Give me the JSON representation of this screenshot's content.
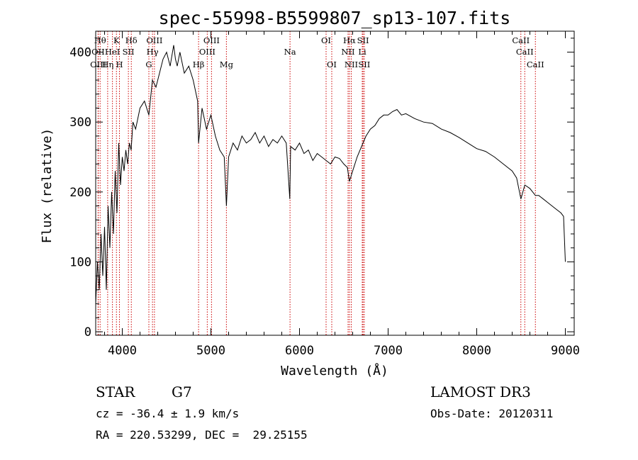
{
  "chart_data": {
    "type": "line",
    "title": "spec-55998-B5599807_sp13-107.fits",
    "xlabel": "Wavelength (Å)",
    "ylabel": "Flux (relative)",
    "xlim": [
      3700,
      9100
    ],
    "ylim": [
      -5,
      430
    ],
    "xticks": [
      4000,
      5000,
      6000,
      7000,
      8000,
      9000
    ],
    "yticks": [
      0,
      100,
      200,
      300,
      400
    ],
    "line_color": "#000000",
    "marker_color": "#cc0000",
    "series": [
      {
        "name": "flux",
        "x": [
          3700,
          3720,
          3740,
          3760,
          3780,
          3800,
          3820,
          3840,
          3860,
          3880,
          3900,
          3920,
          3940,
          3960,
          3980,
          4000,
          4020,
          4040,
          4060,
          4080,
          4100,
          4120,
          4150,
          4200,
          4250,
          4300,
          4340,
          4380,
          4420,
          4460,
          4500,
          4540,
          4580,
          4600,
          4620,
          4650,
          4700,
          4750,
          4800,
          4850,
          4861,
          4900,
          4950,
          5000,
          5050,
          5100,
          5150,
          5175,
          5200,
          5250,
          5300,
          5350,
          5400,
          5450,
          5500,
          5550,
          5600,
          5650,
          5700,
          5750,
          5800,
          5850,
          5890,
          5900,
          5950,
          6000,
          6050,
          6100,
          6150,
          6200,
          6250,
          6300,
          6350,
          6400,
          6450,
          6500,
          6540,
          6563,
          6600,
          6650,
          6700,
          6750,
          6800,
          6850,
          6900,
          6950,
          7000,
          7050,
          7100,
          7150,
          7200,
          7300,
          7400,
          7500,
          7600,
          7700,
          7800,
          7900,
          8000,
          8100,
          8200,
          8300,
          8400,
          8450,
          8498,
          8542,
          8600,
          8662,
          8700,
          8750,
          8800,
          8850,
          8900,
          8950,
          8980,
          9000
        ],
        "y": [
          40,
          100,
          60,
          140,
          80,
          150,
          60,
          180,
          120,
          200,
          140,
          230,
          170,
          270,
          210,
          250,
          230,
          260,
          240,
          270,
          260,
          300,
          290,
          320,
          330,
          310,
          360,
          350,
          370,
          390,
          400,
          380,
          410,
          390,
          380,
          400,
          370,
          380,
          360,
          330,
          270,
          320,
          290,
          310,
          280,
          260,
          250,
          180,
          250,
          270,
          260,
          280,
          270,
          275,
          285,
          270,
          280,
          265,
          275,
          270,
          280,
          270,
          190,
          265,
          260,
          270,
          255,
          260,
          245,
          255,
          250,
          245,
          240,
          250,
          248,
          240,
          235,
          215,
          230,
          250,
          265,
          280,
          290,
          295,
          305,
          310,
          310,
          315,
          318,
          310,
          312,
          305,
          300,
          298,
          290,
          285,
          278,
          270,
          262,
          258,
          250,
          240,
          230,
          220,
          190,
          210,
          205,
          195,
          195,
          190,
          185,
          180,
          175,
          170,
          165,
          100
        ]
      }
    ],
    "spectral_lines": [
      {
        "wavelength": 3750,
        "label": "Hθ",
        "row": 0
      },
      {
        "wavelength": 3727,
        "label": "OII",
        "row": 1
      },
      {
        "wavelength": 3729,
        "label": "OIII",
        "row": 2
      },
      {
        "wavelength": 3835,
        "label": "Hη",
        "row": 2
      },
      {
        "wavelength": 3889,
        "label": "HeI",
        "row": 1
      },
      {
        "wavelength": 3934,
        "label": "K",
        "row": 0
      },
      {
        "wavelength": 3968,
        "label": "H",
        "row": 2
      },
      {
        "wavelength": 4069,
        "label": "SII",
        "row": 1
      },
      {
        "wavelength": 4102,
        "label": "Hδ",
        "row": 0
      },
      {
        "wavelength": 4300,
        "label": "G",
        "row": 2
      },
      {
        "wavelength": 4341,
        "label": "Hγ",
        "row": 1
      },
      {
        "wavelength": 4363,
        "label": "OIII",
        "row": 0
      },
      {
        "wavelength": 4861,
        "label": "Hβ",
        "row": 2
      },
      {
        "wavelength": 4959,
        "label": "OIII",
        "row": 1
      },
      {
        "wavelength": 5007,
        "label": "OIII",
        "row": 0
      },
      {
        "wavelength": 5175,
        "label": "Mg",
        "row": 2
      },
      {
        "wavelength": 5893,
        "label": "Na",
        "row": 1
      },
      {
        "wavelength": 6300,
        "label": "OI",
        "row": 0
      },
      {
        "wavelength": 6364,
        "label": "OI",
        "row": 2
      },
      {
        "wavelength": 6548,
        "label": "NII",
        "row": 1
      },
      {
        "wavelength": 6563,
        "label": "Hα",
        "row": 0
      },
      {
        "wavelength": 6584,
        "label": "NII",
        "row": 2
      },
      {
        "wavelength": 6708,
        "label": "Li",
        "row": 1
      },
      {
        "wavelength": 6717,
        "label": "SII",
        "row": 0
      },
      {
        "wavelength": 6731,
        "label": "SII",
        "row": 2
      },
      {
        "wavelength": 8498,
        "label": "CaII",
        "row": 0
      },
      {
        "wavelength": 8542,
        "label": "CaII",
        "row": 1
      },
      {
        "wavelength": 8662,
        "label": "CaII",
        "row": 2
      }
    ]
  },
  "info": {
    "class": "STAR",
    "subclass": "G7",
    "survey": "LAMOST DR3",
    "redshift": "cz = -36.4 ± 1.9 km/s",
    "obs_date": "Obs-Date: 20120311",
    "coords": "RA = 220.53299, DEC =  29.25155"
  }
}
